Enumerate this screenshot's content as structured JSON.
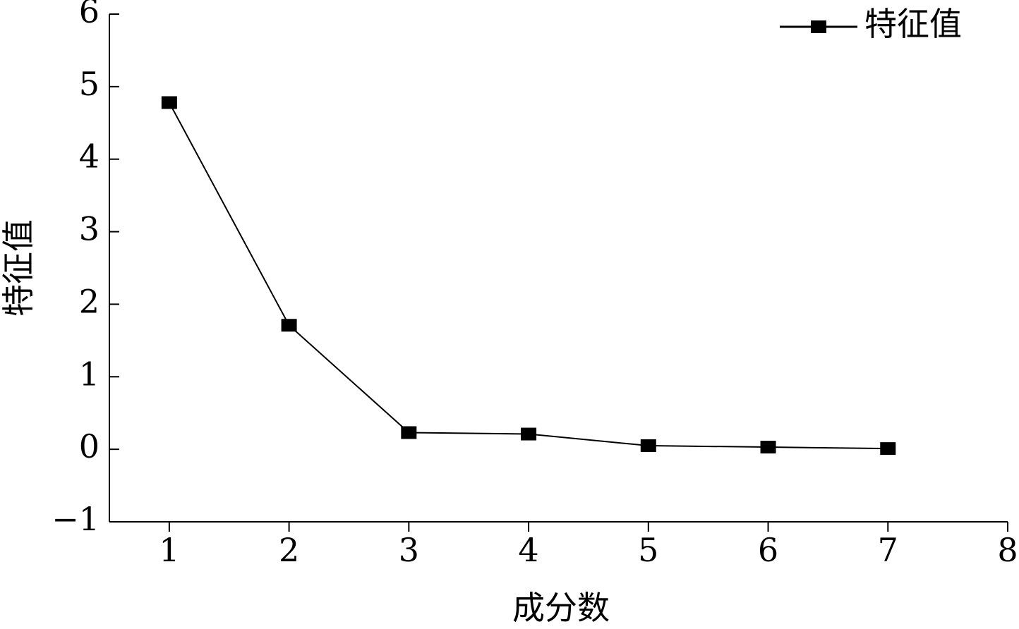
{
  "chart_data": {
    "type": "line",
    "x_label": "成分数",
    "y_label": "特征值",
    "x": [
      1,
      2,
      3,
      4,
      5,
      6,
      7
    ],
    "series": [
      {
        "name": "特征值",
        "color": "#000000",
        "values": [
          4.78,
          1.71,
          0.23,
          0.21,
          0.05,
          0.03,
          0.01
        ]
      }
    ],
    "xlim": [
      0.5,
      8
    ],
    "xticks": [
      1,
      2,
      3,
      4,
      5,
      6,
      7,
      8
    ],
    "ylim": [
      -1,
      6
    ],
    "yticks": [
      {
        "value": -1,
        "label": "−1"
      },
      0,
      1,
      2,
      3,
      4,
      5,
      6
    ],
    "grid": false,
    "legend": "top-right"
  }
}
